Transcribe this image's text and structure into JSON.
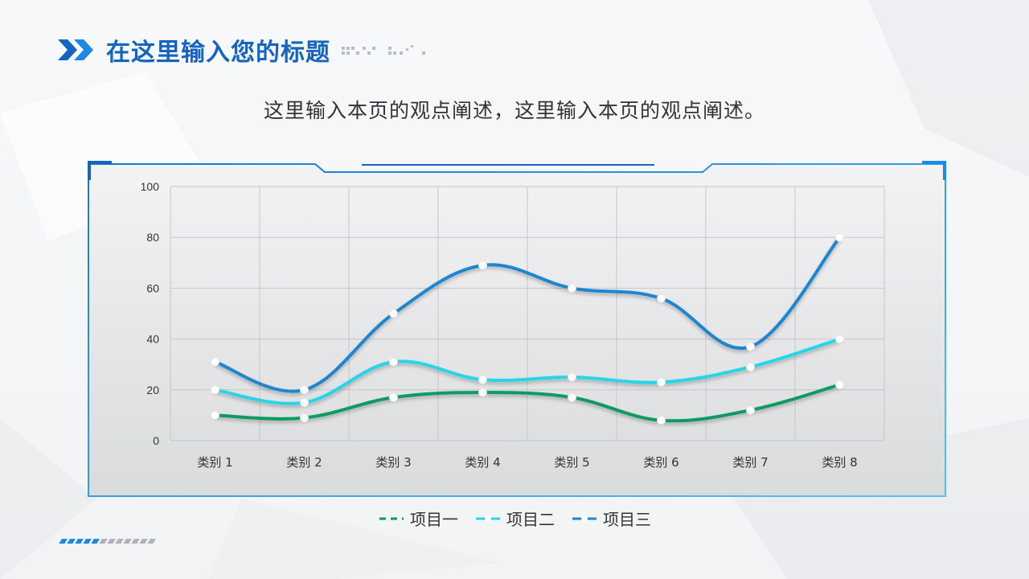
{
  "header": {
    "title": "在这里输入您的标题"
  },
  "subtitle": "这里输入本页的观点阐述，这里输入本页的观点阐述。",
  "colors": {
    "accent": "#1565c0",
    "frame": "#1e88e5",
    "series1": "#0a9b63",
    "series2": "#26d6e8",
    "series3": "#1a86d0"
  },
  "chart_data": {
    "type": "line",
    "categories": [
      "类别 1",
      "类别 2",
      "类别 3",
      "类别 4",
      "类别 5",
      "类别 6",
      "类别 7",
      "类别 8"
    ],
    "series": [
      {
        "name": "项目一",
        "values": [
          10,
          9,
          17,
          19,
          17,
          8,
          12,
          22
        ]
      },
      {
        "name": "项目二",
        "values": [
          20,
          15,
          31,
          24,
          25,
          23,
          29,
          40
        ]
      },
      {
        "name": "项目三",
        "values": [
          31,
          20,
          50,
          69,
          60,
          56,
          37,
          80
        ]
      }
    ],
    "ylim": [
      0,
      100
    ],
    "yticks": [
      0,
      20,
      40,
      60,
      80,
      100
    ],
    "grid": true,
    "smooth": true,
    "legend": "bottom"
  }
}
